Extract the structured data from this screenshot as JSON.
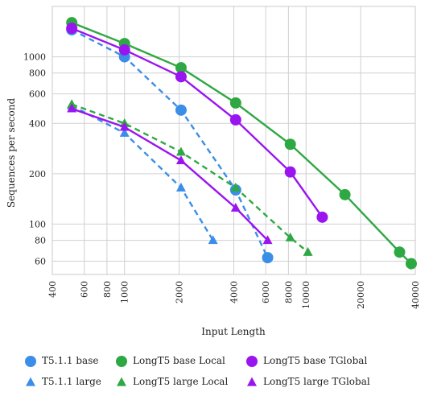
{
  "chart_data": {
    "type": "line",
    "xlabel": "Input Length",
    "ylabel": "Sequences per second",
    "x_scale": "log",
    "y_scale": "log",
    "xlim": [
      400,
      40000
    ],
    "ylim": [
      50,
      2000
    ],
    "x_ticks": [
      400,
      600,
      800,
      1000,
      2000,
      4000,
      6000,
      8000,
      10000,
      20000,
      40000
    ],
    "y_ticks": [
      60,
      80,
      100,
      200,
      400,
      600,
      800,
      1000
    ],
    "grid": true,
    "legend_position": "bottom",
    "series": [
      {
        "name": "T5.1.1 base",
        "color": "#3b8ee8",
        "marker": "circle",
        "line": "dashed",
        "points": [
          [
            512,
            1450
          ],
          [
            1000,
            1000
          ],
          [
            2048,
            480
          ],
          [
            4096,
            160
          ],
          [
            6144,
            63
          ]
        ]
      },
      {
        "name": "T5.1.1 large",
        "color": "#3b8ee8",
        "marker": "triangle",
        "line": "dashed",
        "points": [
          [
            512,
            510
          ],
          [
            1000,
            350
          ],
          [
            2048,
            165
          ],
          [
            3072,
            80
          ]
        ]
      },
      {
        "name": "LongT5 base Local",
        "color": "#2ea843",
        "marker": "circle",
        "line": "solid",
        "points": [
          [
            512,
            1600
          ],
          [
            1000,
            1200
          ],
          [
            2048,
            860
          ],
          [
            4096,
            530
          ],
          [
            8192,
            300
          ],
          [
            16384,
            150
          ],
          [
            32768,
            68
          ],
          [
            38000,
            58
          ]
        ]
      },
      {
        "name": "LongT5 large Local",
        "color": "#2ea843",
        "marker": "triangle",
        "line": "dashed",
        "points": [
          [
            512,
            520
          ],
          [
            1000,
            400
          ],
          [
            2048,
            270
          ],
          [
            4096,
            165
          ],
          [
            8192,
            83
          ],
          [
            10240,
            68
          ]
        ]
      },
      {
        "name": "LongT5 base TGlobal",
        "color": "#9a14f0",
        "marker": "circle",
        "line": "solid",
        "points": [
          [
            512,
            1480
          ],
          [
            1000,
            1100
          ],
          [
            2048,
            760
          ],
          [
            4096,
            420
          ],
          [
            8192,
            205
          ],
          [
            12288,
            110
          ]
        ]
      },
      {
        "name": "LongT5 large TGlobal",
        "color": "#9a14f0",
        "marker": "triangle",
        "line": "solid",
        "points": [
          [
            512,
            490
          ],
          [
            1000,
            380
          ],
          [
            2048,
            240
          ],
          [
            4096,
            125
          ],
          [
            6144,
            80
          ]
        ]
      }
    ]
  }
}
